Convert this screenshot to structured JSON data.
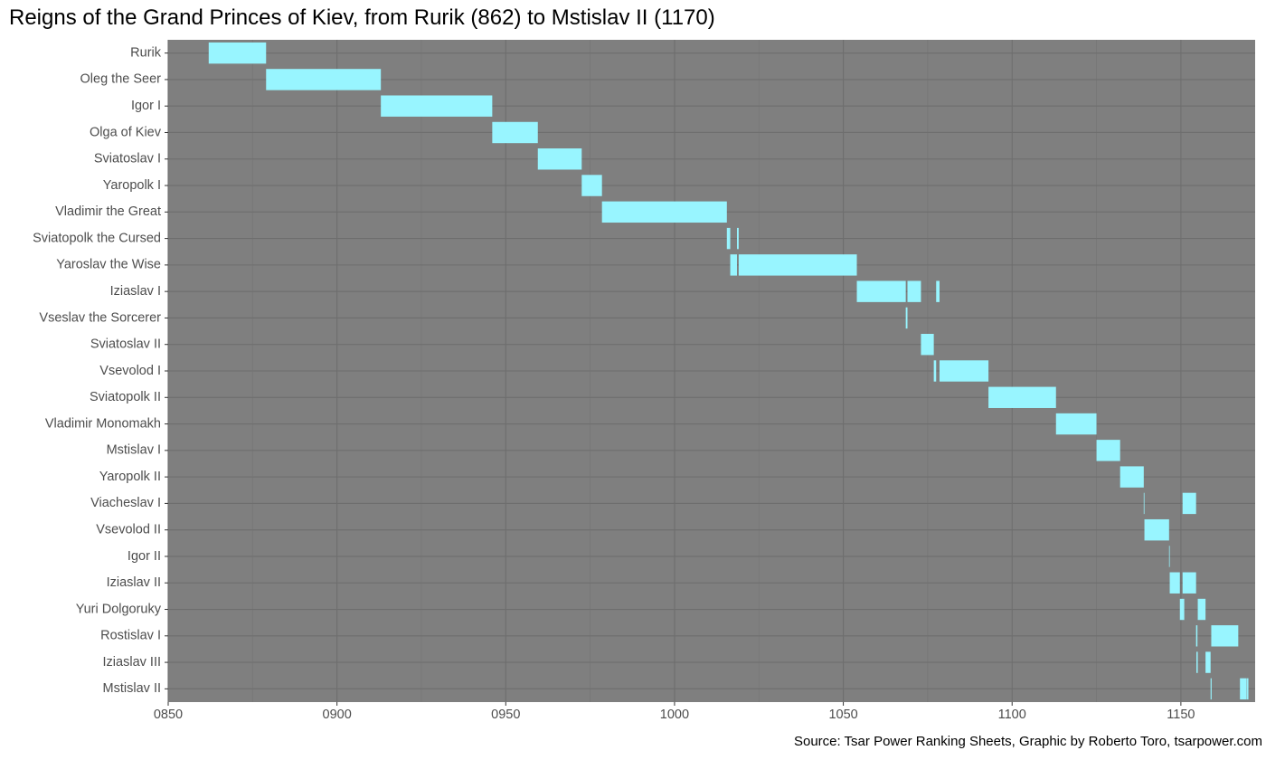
{
  "chart_data": {
    "type": "gantt",
    "title": "Reigns of the Grand Princes of Kiev, from Rurik (862) to Mstislav II (1170)",
    "source": "Source: Tsar Power Ranking Sheets, Graphic by Roberto Toro, tsarpower.com",
    "xlim": [
      850,
      1172
    ],
    "x_ticks": [
      850,
      900,
      950,
      1000,
      1050,
      1100,
      1150
    ],
    "x_tick_labels": [
      "0850",
      "0900",
      "0950",
      "1000",
      "1050",
      "1100",
      "1150"
    ],
    "grid": true,
    "colors": {
      "panel": "#7f7f7f",
      "grid_major": "#6e6e6e",
      "grid_minor": "#777777",
      "bar": "#98f5ff"
    },
    "rulers": [
      {
        "name": "Rurik",
        "reigns": [
          [
            862,
            879
          ]
        ]
      },
      {
        "name": "Oleg the Seer",
        "reigns": [
          [
            879,
            913
          ]
        ]
      },
      {
        "name": "Igor I",
        "reigns": [
          [
            913,
            946
          ]
        ]
      },
      {
        "name": "Olga of Kiev",
        "reigns": [
          [
            946,
            959.5
          ]
        ]
      },
      {
        "name": "Sviatoslav I",
        "reigns": [
          [
            959.5,
            972.5
          ]
        ]
      },
      {
        "name": "Yaropolk I",
        "reigns": [
          [
            972.5,
            978.5
          ]
        ]
      },
      {
        "name": "Vladimir the Great",
        "reigns": [
          [
            978.5,
            1015.5
          ]
        ]
      },
      {
        "name": "Sviatopolk the Cursed",
        "reigns": [
          [
            1015.5,
            1016.5
          ],
          [
            1018.5,
            1019
          ]
        ]
      },
      {
        "name": "Yaroslav the Wise",
        "reigns": [
          [
            1016.5,
            1018.5
          ],
          [
            1019,
            1054
          ]
        ]
      },
      {
        "name": "Iziaslav I",
        "reigns": [
          [
            1054,
            1068.5
          ],
          [
            1069,
            1073
          ],
          [
            1077.5,
            1078.5
          ]
        ]
      },
      {
        "name": "Vseslav the Sorcerer",
        "reigns": [
          [
            1068.5,
            1069
          ]
        ]
      },
      {
        "name": "Sviatoslav II",
        "reigns": [
          [
            1073,
            1076.8
          ]
        ]
      },
      {
        "name": "Vsevolod I",
        "reigns": [
          [
            1076.8,
            1077.5
          ],
          [
            1078.5,
            1093
          ]
        ]
      },
      {
        "name": "Sviatopolk II",
        "reigns": [
          [
            1093,
            1113
          ]
        ]
      },
      {
        "name": "Vladimir Monomakh",
        "reigns": [
          [
            1113,
            1125
          ]
        ]
      },
      {
        "name": "Mstislav I",
        "reigns": [
          [
            1125,
            1132
          ]
        ]
      },
      {
        "name": "Yaropolk II",
        "reigns": [
          [
            1132,
            1139
          ]
        ]
      },
      {
        "name": "Viacheslav I",
        "reigns": [
          [
            1139,
            1139.2
          ],
          [
            1150.5,
            1154.5
          ]
        ]
      },
      {
        "name": "Vsevolod II",
        "reigns": [
          [
            1139.2,
            1146.5
          ]
        ]
      },
      {
        "name": "Igor II",
        "reigns": [
          [
            1146.5,
            1146.7
          ]
        ]
      },
      {
        "name": "Iziaslav II",
        "reigns": [
          [
            1146.7,
            1149.7
          ],
          [
            1150.5,
            1154.5
          ]
        ]
      },
      {
        "name": "Yuri Dolgoruky",
        "reigns": [
          [
            1149.7,
            1151
          ],
          [
            1155,
            1157.3
          ]
        ]
      },
      {
        "name": "Rostislav I",
        "reigns": [
          [
            1154.5,
            1154.9
          ],
          [
            1159,
            1167
          ]
        ]
      },
      {
        "name": "Iziaslav III",
        "reigns": [
          [
            1154.6,
            1155
          ],
          [
            1157.3,
            1158.8
          ]
        ]
      },
      {
        "name": "Mstislav II",
        "reigns": [
          [
            1158.8,
            1159.1
          ],
          [
            1167.5,
            1169.5
          ],
          [
            1169.6,
            1170
          ]
        ]
      }
    ]
  }
}
